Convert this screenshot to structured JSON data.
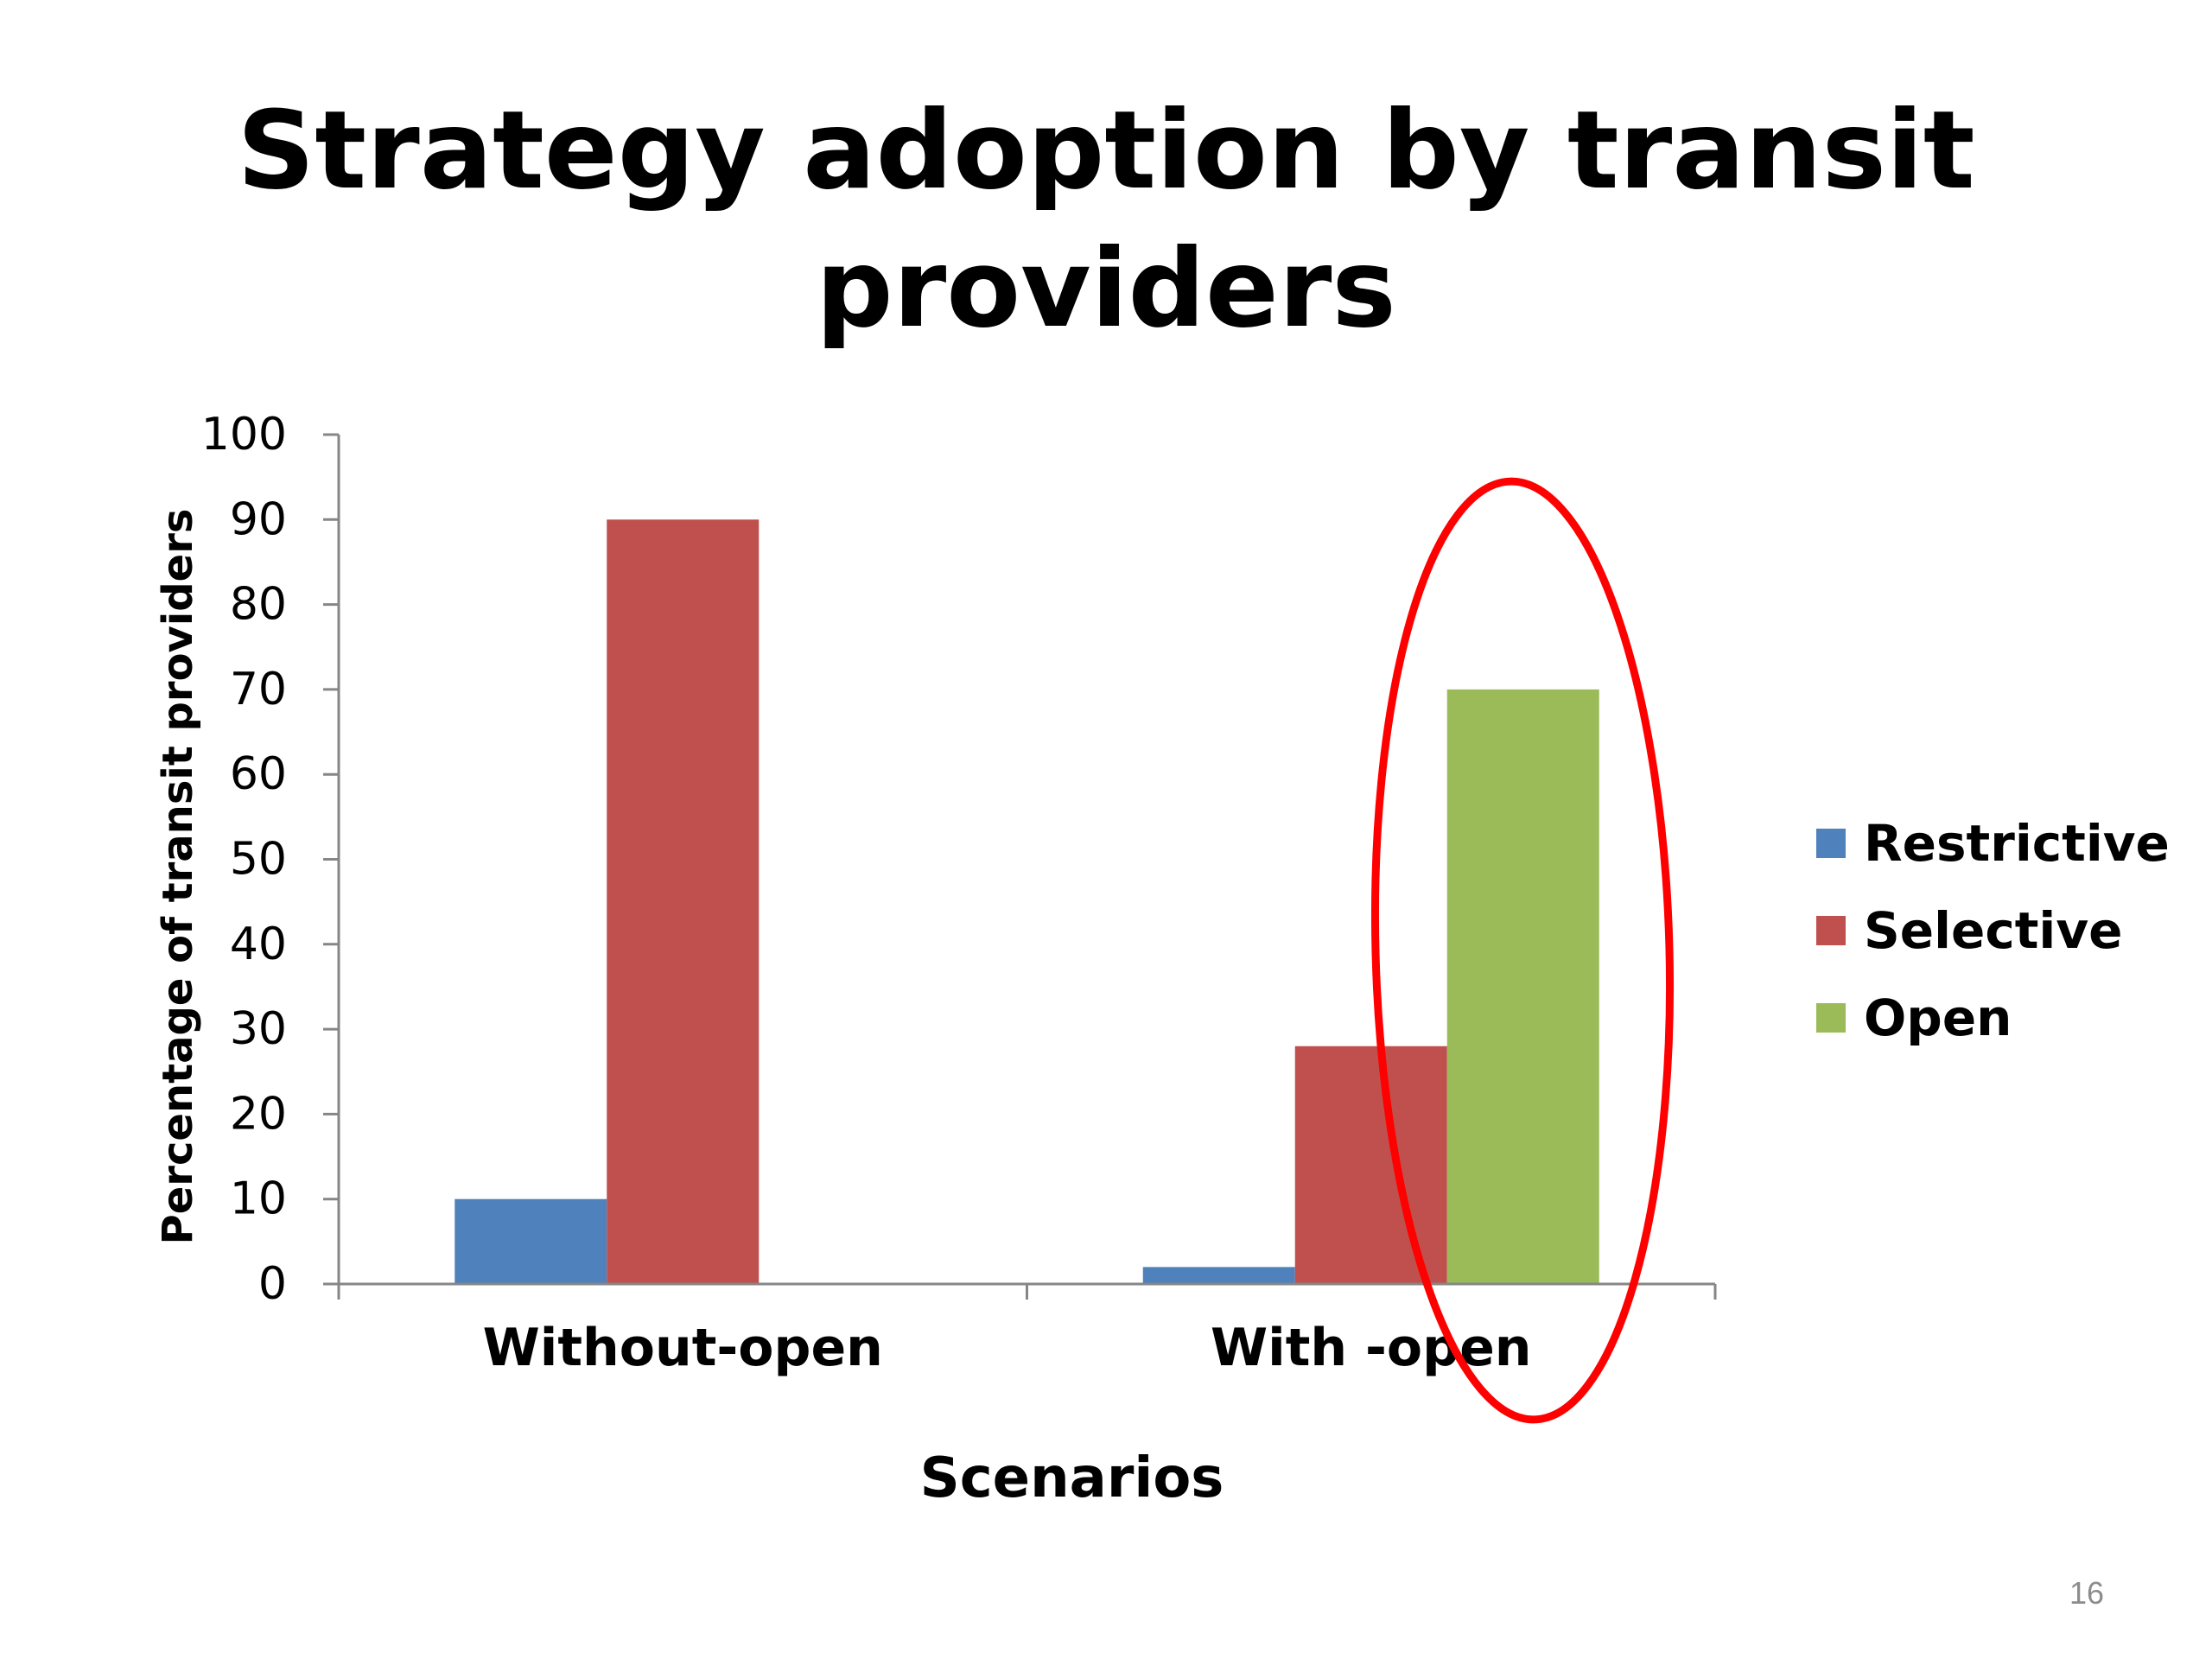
{
  "slide": {
    "title_line1": "Strategy adoption by transit",
    "title_line2": "providers",
    "page_number": "16"
  },
  "chart_data": {
    "type": "bar",
    "categories": [
      "Without-open",
      "With -open"
    ],
    "series": [
      {
        "name": "Restrictive",
        "values": [
          10,
          2
        ],
        "color": "#4f81bd"
      },
      {
        "name": "Selective",
        "values": [
          90,
          28
        ],
        "color": "#c0504d"
      },
      {
        "name": "Open",
        "values": [
          0,
          70
        ],
        "color": "#9bbb59"
      }
    ],
    "xlabel": "Scenarios",
    "ylabel": "Percentage of transit providers",
    "ylim": [
      0,
      100
    ],
    "yticks": [
      0,
      10,
      20,
      30,
      40,
      50,
      60,
      70,
      80,
      90,
      100
    ],
    "legend_position": "right",
    "grid": false,
    "annotation": {
      "type": "ellipse",
      "target_category": "With -open",
      "color": "#ff0000"
    }
  }
}
